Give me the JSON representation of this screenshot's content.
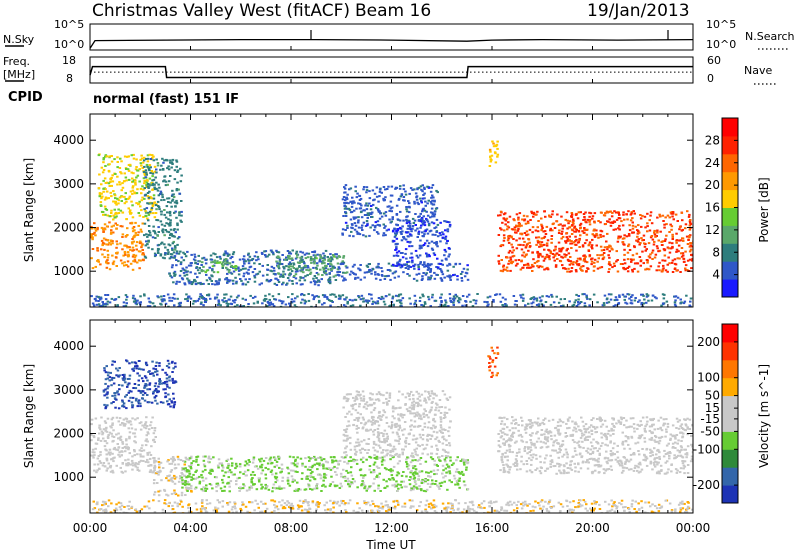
{
  "header": {
    "station": "Christmas Valley West (fitACF)",
    "beam": "Beam 16",
    "date": "19/Jan/2013"
  },
  "labels": {
    "nsky": "N.Sky",
    "nsearch": "N.Search",
    "freq_line1": "Freq.",
    "freq_line2": "[MHz]",
    "nave": "Nave",
    "cpid": "CPID",
    "mode": "normal (fast) 151 IF",
    "noise_tick_hi": "10^5",
    "noise_tick_lo": "10^0",
    "freq_tick_hi": "18",
    "freq_tick_lo": "8",
    "nave_tick_hi": "60",
    "nave_tick_lo": "0"
  },
  "colors": {
    "power_scale": [
      "#1a1aff",
      "#2f57c8",
      "#2e7d7d",
      "#5aa86a",
      "#66cc33",
      "#ffcc00",
      "#ff9900",
      "#ff6600",
      "#ff2200",
      "#ff0000"
    ],
    "velocity_scale": [
      "#1d33b5",
      "#3366aa",
      "#2f8a3a",
      "#66cc33",
      "#c8c8c8",
      "#c8c8c8",
      "#ffaa00",
      "#ff7700",
      "#ff3300",
      "#ff0000"
    ]
  },
  "chart_data": [
    {
      "type": "line",
      "panel": "noise",
      "ylabel_left": "N.Sky",
      "ylabel_right": "N.Search",
      "y_ticks": [
        "10^0",
        "10^5"
      ],
      "x_range": [
        "00:00",
        "00:00"
      ],
      "series": [
        {
          "name": "N.Sky",
          "style": "solid",
          "x": [
            0,
            0.2,
            3,
            6,
            9,
            12,
            15,
            16,
            18,
            21,
            24
          ],
          "y": [
            0.3,
            1.8,
            1.9,
            2.0,
            2.0,
            1.9,
            1.7,
            1.9,
            2.0,
            1.9,
            2.0
          ]
        }
      ]
    },
    {
      "type": "line",
      "panel": "frequency",
      "ylabel_left": "Freq. [MHz]",
      "ylabel_right": "Nave",
      "y_ticks_left": [
        "8",
        "18"
      ],
      "y_ticks_right": [
        "0",
        "60"
      ],
      "series": [
        {
          "name": "Freq.",
          "style": "solid",
          "x": [
            0,
            0.1,
            3.0,
            3.05,
            15.0,
            15.05,
            24
          ],
          "y": [
            11.0,
            14.3,
            14.3,
            10.1,
            10.1,
            14.3,
            14.3
          ]
        },
        {
          "name": "Nave",
          "style": "dotted",
          "x": [
            0,
            24
          ],
          "y": [
            25,
            25
          ]
        }
      ]
    },
    {
      "type": "heatmap",
      "panel": "power",
      "xlabel": "",
      "ylabel": "Slant Range [km]",
      "x_ticks": [
        "00:00",
        "04:00",
        "08:00",
        "12:00",
        "16:00",
        "20:00",
        "00:00"
      ],
      "y_ticks": [
        1000,
        2000,
        3000,
        4000
      ],
      "xlim": [
        0,
        24
      ],
      "ylim": [
        180,
        4600
      ],
      "colorbar": {
        "label": "Power [dB]",
        "ticks": [
          4,
          8,
          12,
          16,
          20,
          24,
          28
        ],
        "range": [
          0,
          32
        ]
      },
      "regions": [
        {
          "x": [
            0.0,
            2.1
          ],
          "y": [
            1050,
            2150
          ],
          "value": 22
        },
        {
          "x": [
            0.3,
            2.6
          ],
          "y": [
            2200,
            3700
          ],
          "value": 17
        },
        {
          "x": [
            2.1,
            3.6
          ],
          "y": [
            1300,
            3600
          ],
          "value": 8
        },
        {
          "x": [
            3.1,
            9.8
          ],
          "y": [
            700,
            1500
          ],
          "value": 6
        },
        {
          "x": [
            4.2,
            5.8
          ],
          "y": [
            1000,
            1300
          ],
          "value": 12
        },
        {
          "x": [
            7.3,
            10.2
          ],
          "y": [
            900,
            1400
          ],
          "value": 11
        },
        {
          "x": [
            9.8,
            15.0
          ],
          "y": [
            800,
            1200
          ],
          "value": 5
        },
        {
          "x": [
            10.0,
            13.8
          ],
          "y": [
            1800,
            3000
          ],
          "value": 5
        },
        {
          "x": [
            12.0,
            14.3
          ],
          "y": [
            1100,
            2200
          ],
          "value": 4
        },
        {
          "x": [
            15.8,
            16.2
          ],
          "y": [
            3300,
            4000
          ],
          "value": 18
        },
        {
          "x": [
            16.2,
            24.0
          ],
          "y": [
            1000,
            2400
          ],
          "value": 26
        },
        {
          "x": [
            0.0,
            24.0
          ],
          "y": [
            180,
            500
          ],
          "value": 6
        }
      ]
    },
    {
      "type": "heatmap",
      "panel": "velocity",
      "xlabel": "Time UT",
      "ylabel": "Slant Range [km]",
      "x_ticks": [
        "00:00",
        "04:00",
        "08:00",
        "12:00",
        "16:00",
        "20:00",
        "00:00"
      ],
      "y_ticks": [
        1000,
        2000,
        3000,
        4000
      ],
      "xlim": [
        0,
        24
      ],
      "ylim": [
        180,
        4600
      ],
      "colorbar": {
        "label": "Velocity [m s^-1]",
        "ticks": [
          200,
          100,
          50,
          15,
          -15,
          -50,
          -100,
          -200
        ],
        "range": [
          -250,
          250
        ]
      },
      "regions": [
        {
          "x": [
            0.0,
            2.6
          ],
          "y": [
            1100,
            2400
          ],
          "value": 0
        },
        {
          "x": [
            0.5,
            3.4
          ],
          "y": [
            2600,
            3700
          ],
          "value": -200
        },
        {
          "x": [
            2.5,
            4.0
          ],
          "y": [
            600,
            1500
          ],
          "value": 30
        },
        {
          "x": [
            3.6,
            15.0
          ],
          "y": [
            700,
            1500
          ],
          "value": -60
        },
        {
          "x": [
            10.0,
            14.3
          ],
          "y": [
            1500,
            3000
          ],
          "value": 0
        },
        {
          "x": [
            15.8,
            16.2
          ],
          "y": [
            3300,
            4000
          ],
          "value": 150
        },
        {
          "x": [
            16.2,
            24.0
          ],
          "y": [
            1100,
            2400
          ],
          "value": 0
        },
        {
          "x": [
            0.0,
            24.0
          ],
          "y": [
            180,
            500
          ],
          "value": 40
        }
      ]
    }
  ]
}
